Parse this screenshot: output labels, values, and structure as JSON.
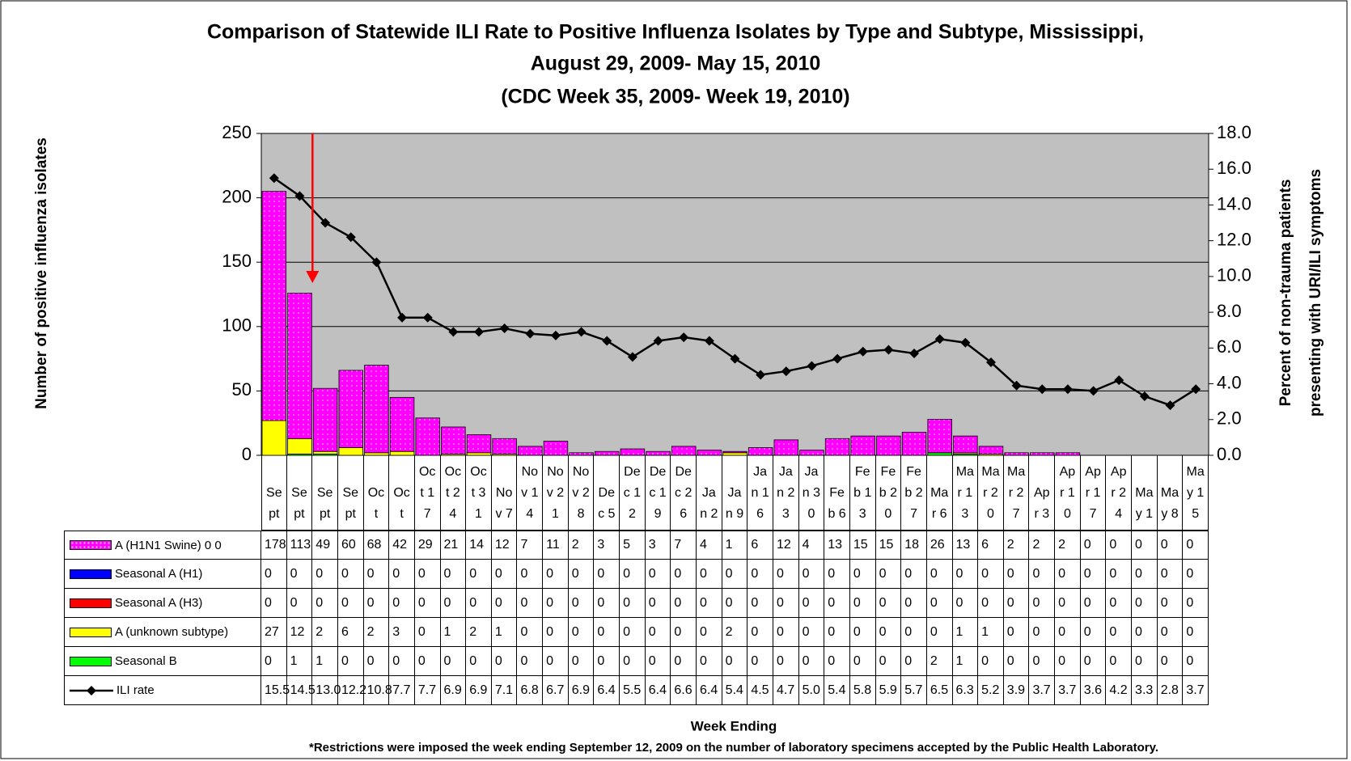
{
  "chart_data": {
    "type": "bar",
    "stacked": true,
    "title": [
      "Comparison of Statewide ILI Rate to Positive Influenza Isolates by Type and Subtype, Mississippi,",
      "August 29, 2009- May 15, 2010"
    ],
    "subtitle": "(CDC Week 35, 2009- Week 19, 2010)",
    "ylabel": "Number of positive influenza isolates",
    "y2label": [
      "Percent of non-trauma patients",
      "presenting with URI/ILI symptoms"
    ],
    "xlabel": "Week Ending",
    "note": "*Restrictions were imposed the week ending September 12, 2009 on the number of laboratory specimens accepted by the Public Health Laboratory.",
    "categories": [
      "Sept",
      "Sept",
      "Sept",
      "Sept",
      "Oct",
      "Oct",
      "Oct 17",
      "Oct 24",
      "Oct 31",
      "Nov 7",
      "Nov 14",
      "Nov 21",
      "Nov 28",
      "Dec 5",
      "Dec 12",
      "Dec 19",
      "Dec 26",
      "Jan 2",
      "Jan 9",
      "Jan 16",
      "Jan 23",
      "Jan 30",
      "Feb 6",
      "Feb 13",
      "Feb 20",
      "Feb 27",
      "Mar 6",
      "Mar 13",
      "Mar 20",
      "Mar 27",
      "Apr 3",
      "Apr 10",
      "Apr 17",
      "Apr 24",
      "May 1",
      "May 8",
      "May 15"
    ],
    "series": [
      {
        "name": "A (H1N1 Swine) 0 0",
        "color": "#ff00ff",
        "values": [
          178,
          113,
          49,
          60,
          68,
          42,
          29,
          21,
          14,
          12,
          7,
          11,
          2,
          3,
          5,
          3,
          7,
          4,
          1,
          6,
          12,
          4,
          13,
          15,
          15,
          18,
          26,
          13,
          6,
          2,
          2,
          2,
          0,
          0,
          0,
          0,
          0
        ]
      },
      {
        "name": "Seasonal A (H1)",
        "color": "#0000ff",
        "values": [
          0,
          0,
          0,
          0,
          0,
          0,
          0,
          0,
          0,
          0,
          0,
          0,
          0,
          0,
          0,
          0,
          0,
          0,
          0,
          0,
          0,
          0,
          0,
          0,
          0,
          0,
          0,
          0,
          0,
          0,
          0,
          0,
          0,
          0,
          0,
          0,
          0
        ]
      },
      {
        "name": "Seasonal A (H3)",
        "color": "#ff0000",
        "values": [
          0,
          0,
          0,
          0,
          0,
          0,
          0,
          0,
          0,
          0,
          0,
          0,
          0,
          0,
          0,
          0,
          0,
          0,
          0,
          0,
          0,
          0,
          0,
          0,
          0,
          0,
          0,
          0,
          0,
          0,
          0,
          0,
          0,
          0,
          0,
          0,
          0
        ]
      },
      {
        "name": "A (unknown subtype)",
        "color": "#ffff00",
        "values": [
          27,
          12,
          2,
          6,
          2,
          3,
          0,
          1,
          2,
          1,
          0,
          0,
          0,
          0,
          0,
          0,
          0,
          0,
          2,
          0,
          0,
          0,
          0,
          0,
          0,
          0,
          0,
          1,
          1,
          0,
          0,
          0,
          0,
          0,
          0,
          0,
          0
        ]
      },
      {
        "name": "Seasonal B",
        "color": "#00ff00",
        "values": [
          0,
          1,
          1,
          0,
          0,
          0,
          0,
          0,
          0,
          0,
          0,
          0,
          0,
          0,
          0,
          0,
          0,
          0,
          0,
          0,
          0,
          0,
          0,
          0,
          0,
          0,
          2,
          1,
          0,
          0,
          0,
          0,
          0,
          0,
          0,
          0,
          0
        ]
      },
      {
        "name": "ILI rate",
        "color": "#000000",
        "type": "line",
        "axis": "y2",
        "values": [
          15.5,
          14.5,
          13.0,
          12.2,
          10.8,
          7.7,
          7.7,
          6.9,
          6.9,
          7.1,
          6.8,
          6.7,
          6.9,
          6.4,
          5.5,
          6.4,
          6.6,
          6.4,
          5.4,
          4.5,
          4.7,
          5.0,
          5.4,
          5.8,
          5.9,
          5.7,
          6.5,
          6.3,
          5.2,
          3.9,
          3.7,
          3.7,
          3.6,
          4.2,
          3.3,
          2.8,
          3.7
        ],
        "value_labels": [
          "15.5",
          "14.5",
          "13.0",
          "12.2",
          "10.8",
          "7.7",
          "7.7",
          "6.9",
          "6.9",
          "7.1",
          "6.8",
          "6.7",
          "6.9",
          "6.4",
          "5.5",
          "6.4",
          "6.6",
          "6.4",
          "5.4",
          "4.5",
          "4.7",
          "5.0",
          "5.4",
          "5.8",
          "5.9",
          "5.7",
          "6.5",
          "6.3",
          "5.2",
          "3.9",
          "3.7",
          "3.7",
          "3.6",
          "4.2",
          "3.3",
          "2.8",
          "3.7"
        ]
      }
    ],
    "ylim": [
      0,
      250
    ],
    "yticks": [
      0,
      50,
      100,
      150,
      200,
      250
    ],
    "y2lim": [
      0,
      18
    ],
    "y2ticks": [
      {
        "value": 0,
        "label": "0.0"
      },
      {
        "value": 2,
        "label": "2.0"
      },
      {
        "value": 4,
        "label": "4.0"
      },
      {
        "value": 6,
        "label": "6.0"
      },
      {
        "value": 8,
        "label": "8.0"
      },
      {
        "value": 10,
        "label": "10.0"
      },
      {
        "value": 12,
        "label": "12.0"
      },
      {
        "value": 14,
        "label": "14.0"
      },
      {
        "value": 16,
        "label": "16.0"
      },
      {
        "value": 18,
        "label": "18.0"
      }
    ],
    "grid": true,
    "plot_background": "#c0c0c0"
  }
}
